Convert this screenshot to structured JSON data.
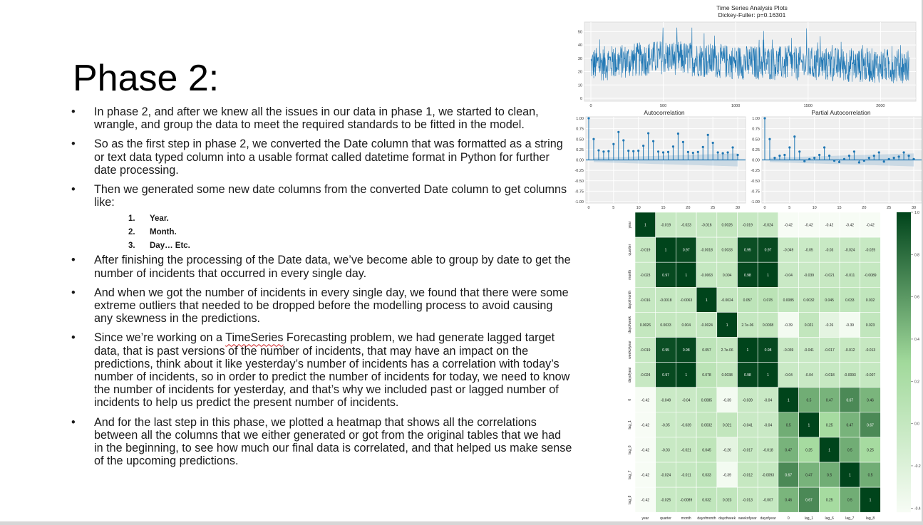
{
  "slide": {
    "title": "Phase 2:",
    "bullets": [
      "In phase 2, and after we knew all the issues in our data in phase 1, we started to clean, wrangle, and group the data to meet the required standards to be fitted in the model.",
      "So as the first step in phase 2, we converted the Date column that was formatted as a string or text data typed column into a usable format called datetime format in Python for further date processing.",
      "Then we generated some new date columns from the converted Date column to get columns like:",
      "After finishing the processing of the Date data, we’ve become able to group by date to get the number of incidents that occurred in every single day.",
      "And when we got the number of incidents in every single day, we found that there were some extreme outliers that needed to be dropped before the modelling process to avoid causing any skewness in the predictions.",
      {
        "before": "Since we’re working on a ",
        "marked": "TimeSeries",
        "after": " Forecasting problem, we had generate lagged target data, that is past versions of the number of incidents, that may have an impact on the predictions, think about it like yesterday’s number of incidents has a correlation with today’s number of incidents, so in order to predict the number of incidents for today, we need to know the number of incidents for yesterday, and that’s why we included past or lagged number of incidents to help us predict the present number of incidents."
      },
      "And for the last step in this phase, we plotted a heatmap that shows all the correlations between all the columns that we either generated or got from the original tables that we had in the beginning, to see how much our final data is correlated, and that helped us make sense of the upcoming predictions."
    ],
    "sub_items": [
      {
        "num": "1.",
        "text": "Year."
      },
      {
        "num": "2.",
        "text": "Month."
      },
      {
        "num": "3.",
        "text": "Day… Etc."
      }
    ],
    "bullet_glyph": "•"
  },
  "colors": {
    "line": "#1f77b4",
    "heat_low": "#f7fcf5",
    "heat_high": "#00441b"
  },
  "chart_data": [
    {
      "type": "line",
      "title": "Time Series Analysis Plots",
      "subtitle": "Dickey-Fuller: p=0.16301",
      "xlim": [
        0,
        2200
      ],
      "ylim": [
        0,
        55
      ],
      "x_ticks": [
        0,
        500,
        1000,
        1500,
        2000
      ],
      "y_ticks": [
        0,
        10,
        20,
        30,
        40,
        50
      ],
      "n_points": 2200,
      "y_mean": 28,
      "y_range": [
        5,
        53
      ]
    },
    {
      "type": "bar",
      "title": "Autocorrelation",
      "xlim": [
        0,
        31
      ],
      "ylim": [
        -1,
        1
      ],
      "x_ticks": [
        0,
        5,
        10,
        15,
        20,
        25,
        30
      ],
      "y_ticks": [
        "-1.00",
        "-0.75",
        "-0.50",
        "-0.25",
        "0.00",
        "0.25",
        "0.50",
        "0.75",
        "1.00"
      ],
      "lags": [
        0,
        1,
        2,
        3,
        4,
        5,
        6,
        7,
        8,
        9,
        10,
        11,
        12,
        13,
        14,
        15,
        16,
        17,
        18,
        19,
        20,
        21,
        22,
        23,
        24,
        25,
        26,
        27,
        28,
        29,
        30
      ],
      "values": [
        1.0,
        0.5,
        0.23,
        0.2,
        0.21,
        0.38,
        0.67,
        0.47,
        0.22,
        0.21,
        0.22,
        0.34,
        0.64,
        0.45,
        0.2,
        0.18,
        0.19,
        0.32,
        0.63,
        0.43,
        0.19,
        0.17,
        0.19,
        0.31,
        0.6,
        0.41,
        0.18,
        0.16,
        0.18,
        0.3,
        0.12
      ]
    },
    {
      "type": "bar",
      "title": "Partial Autocorrelation",
      "xlim": [
        0,
        31
      ],
      "ylim": [
        -1,
        1
      ],
      "x_ticks": [
        0,
        5,
        10,
        15,
        20,
        25,
        30
      ],
      "y_ticks": [
        "-1.00",
        "-0.75",
        "-0.50",
        "-0.25",
        "0.00",
        "0.25",
        "0.50",
        "0.75",
        "1.00"
      ],
      "lags": [
        0,
        1,
        2,
        3,
        4,
        5,
        6,
        7,
        8,
        9,
        10,
        11,
        12,
        13,
        14,
        15,
        16,
        17,
        18,
        19,
        20,
        21,
        22,
        23,
        24,
        25,
        26,
        27,
        28,
        29,
        30
      ],
      "values": [
        1.0,
        0.5,
        0.05,
        0.1,
        0.12,
        0.3,
        0.56,
        0.2,
        -0.03,
        0.02,
        0.05,
        0.12,
        0.3,
        0.1,
        -0.02,
        -0.05,
        0.02,
        0.1,
        0.2,
        -0.06,
        -0.02,
        0.05,
        0.1,
        0.18,
        -0.04,
        0.02,
        0.05,
        0.08,
        0.18,
        0.1,
        0.02
      ]
    },
    {
      "type": "heatmap",
      "labels": [
        "year",
        "quarter",
        "month",
        "dayofmonth",
        "dayofweek",
        "weekofyear",
        "dayofyear",
        "0",
        "lag_1",
        "lag_6",
        "lag_7",
        "lag_8"
      ],
      "values": [
        [
          1,
          -0.019,
          -0.023,
          -0.016,
          0.0026,
          -0.019,
          -0.024,
          -0.42,
          -0.42,
          -0.42,
          -0.42,
          -0.42
        ],
        [
          -0.019,
          1,
          0.97,
          -0.0018,
          0.0033,
          0.95,
          0.97,
          -0.049,
          -0.05,
          -0.03,
          -0.024,
          -0.025
        ],
        [
          -0.023,
          0.97,
          1,
          -0.0063,
          0.004,
          0.98,
          1,
          -0.04,
          -0.039,
          -0.021,
          -0.011,
          -0.0089
        ],
        [
          -0.016,
          -0.0018,
          -0.0063,
          1,
          -0.0024,
          0.057,
          0.078,
          0.0085,
          0.0032,
          0.045,
          0.033,
          0.032
        ],
        [
          0.0026,
          0.0033,
          0.004,
          -0.0024,
          1,
          "2.7e-06",
          0.0038,
          -0.39,
          0.021,
          -0.26,
          -0.39,
          0.023
        ],
        [
          -0.019,
          0.95,
          0.98,
          0.057,
          "2.7e-06",
          1,
          0.98,
          -0.039,
          -0.041,
          -0.017,
          -0.012,
          -0.013
        ],
        [
          -0.024,
          0.97,
          1,
          0.078,
          0.0038,
          0.98,
          1,
          -0.04,
          -0.04,
          -0.018,
          -0.0093,
          -0.007
        ],
        [
          -0.42,
          -0.049,
          -0.04,
          0.0085,
          -0.39,
          -0.039,
          -0.04,
          1,
          0.5,
          0.47,
          0.67,
          0.46
        ],
        [
          -0.42,
          -0.05,
          -0.039,
          0.0032,
          0.021,
          -0.041,
          -0.04,
          0.5,
          1,
          0.25,
          0.47,
          0.67
        ],
        [
          -0.42,
          -0.03,
          -0.021,
          0.045,
          -0.26,
          -0.017,
          -0.018,
          0.47,
          0.25,
          1,
          0.5,
          0.25
        ],
        [
          -0.42,
          -0.024,
          -0.011,
          0.033,
          -0.39,
          -0.012,
          -0.0093,
          0.67,
          0.47,
          0.5,
          1,
          0.5
        ],
        [
          -0.42,
          -0.025,
          -0.0089,
          0.032,
          0.023,
          -0.013,
          -0.007,
          0.46,
          0.67,
          0.25,
          0.5,
          1
        ]
      ],
      "vmin": -0.42,
      "vmax": 1.0,
      "colorbar_ticks": [
        "1.0",
        "0.8",
        "0.6",
        "0.4",
        "0.2",
        "0.0",
        "-0.2",
        "-0.4"
      ]
    }
  ]
}
